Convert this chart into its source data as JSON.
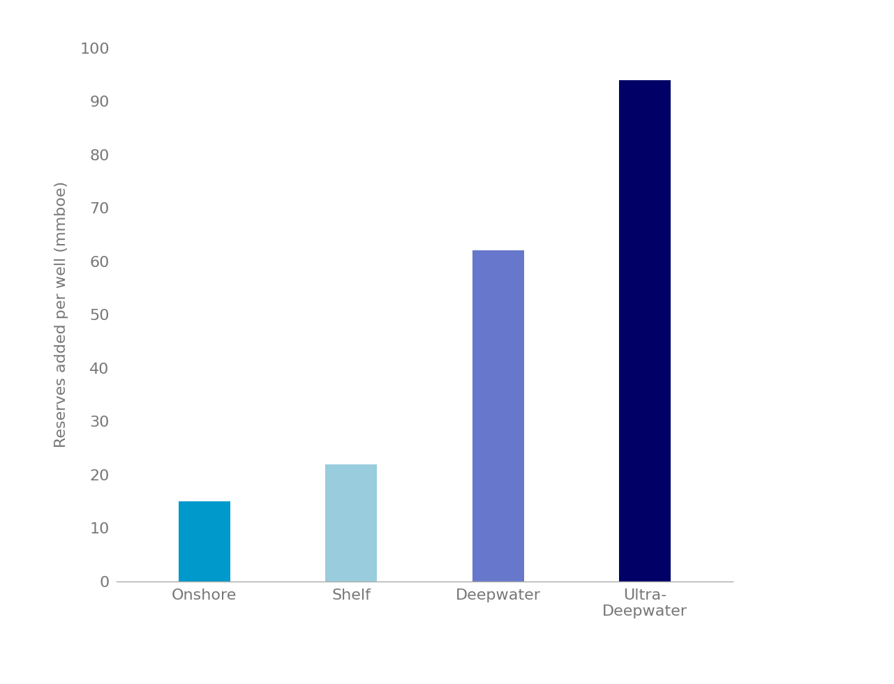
{
  "categories": [
    "Onshore",
    "Shelf",
    "Deepwater",
    "Ultra-\nDeepwater"
  ],
  "values": [
    15,
    22,
    62,
    94
  ],
  "bar_colors": [
    "#0099CC",
    "#99CCDD",
    "#6677CC",
    "#000066"
  ],
  "ylabel": "Reserves added per well (mmboe)",
  "ylim": [
    0,
    100
  ],
  "yticks": [
    0,
    10,
    20,
    30,
    40,
    50,
    60,
    70,
    80,
    90,
    100
  ],
  "background_color": "#FFFFFF",
  "bar_width": 0.35,
  "ylabel_fontsize": 16,
  "tick_fontsize": 16,
  "xtick_fontsize": 16
}
